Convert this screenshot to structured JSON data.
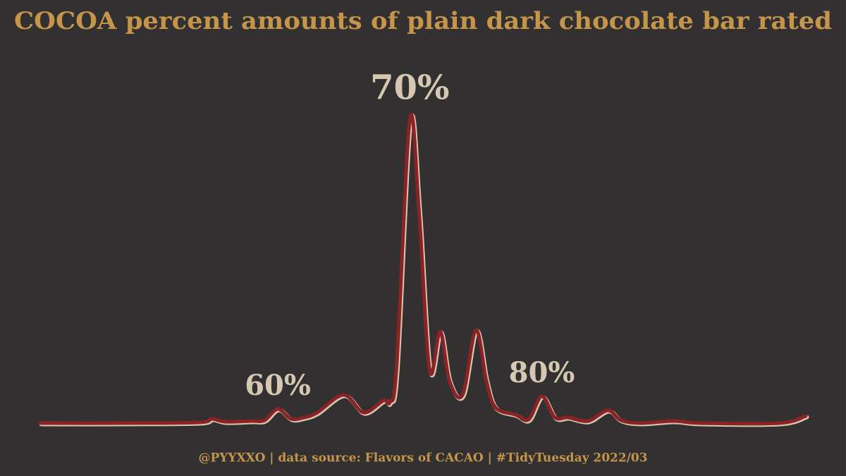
{
  "chart_data": {
    "type": "line",
    "title": "COCOA percent amounts of plain dark chocolate bar rated",
    "caption": "@PYYXXO | data source: Flavors of CACAO | #TidyTuesday 2022/03",
    "x": [
      42,
      48,
      54,
      55,
      56,
      58,
      59,
      60,
      61,
      62,
      63,
      65,
      66.5,
      68,
      68.5,
      69,
      70,
      70.7,
      71.5,
      72.3,
      73,
      74,
      75,
      75.8,
      76.5,
      78,
      79,
      80,
      81,
      82,
      83.5,
      85,
      86,
      87.5,
      90,
      92,
      98,
      100
    ],
    "series": [
      {
        "color": "#8b2326",
        "values": [
          0,
          0,
          0.001,
          0.006,
          0.002,
          0.003,
          0.004,
          0.02,
          0.006,
          0.008,
          0.015,
          0.04,
          0.015,
          0.032,
          0.03,
          0.08,
          0.43,
          0.3,
          0.075,
          0.13,
          0.06,
          0.04,
          0.132,
          0.06,
          0.022,
          0.012,
          0.005,
          0.038,
          0.008,
          0.008,
          0.003,
          0.018,
          0.004,
          0,
          0.003,
          0,
          0,
          0.01
        ]
      }
    ],
    "xlim": [
      42,
      100
    ],
    "ylim": [
      0,
      0.43
    ],
    "annotations": [
      {
        "x": 60,
        "label": "60%"
      },
      {
        "x": 70,
        "label": "70%"
      },
      {
        "x": 80,
        "label": "80%"
      }
    ]
  }
}
